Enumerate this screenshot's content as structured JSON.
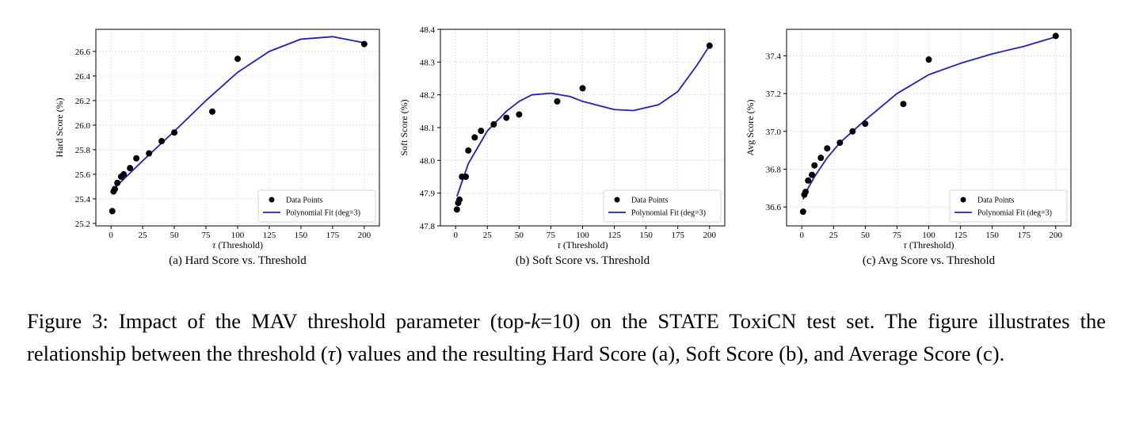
{
  "figure": {
    "caption": {
      "parts": [
        {
          "text": "Figure 3: Impact of the MAV threshold parameter (top-",
          "italic": false
        },
        {
          "text": "k",
          "italic": true
        },
        {
          "text": "=10) on the STATE ToxiCN test set. The figure illustrates the relationship between the threshold (",
          "italic": false
        },
        {
          "text": "τ",
          "italic": true
        },
        {
          "text": ") values and the resulting Hard Score (a), Soft Score (b), and Average Score (c).",
          "italic": false
        }
      ]
    }
  },
  "chart_data": [
    {
      "type": "scatter",
      "subcaption": "(a) Hard Score vs. Threshold",
      "xlabel_symbol": "τ",
      "xlabel_text": " (Threshold)",
      "ylabel": "Hard Score (%)",
      "xlim": [
        -12,
        212
      ],
      "ylim": [
        25.18,
        26.78
      ],
      "xticks": [
        0,
        25,
        50,
        75,
        100,
        125,
        150,
        175,
        200
      ],
      "yticks": [
        25.2,
        25.4,
        25.6,
        25.8,
        26.0,
        26.2,
        26.4,
        26.6
      ],
      "ytick_labels": [
        "25.2",
        "25.4",
        "25.6",
        "25.8",
        "26.0",
        "26.2",
        "26.4",
        "26.6"
      ],
      "grid": true,
      "legend_position": "lower-right",
      "series": [
        {
          "name": "Data Points",
          "kind": "scatter",
          "x": [
            1,
            2,
            3,
            5,
            8,
            10,
            15,
            20,
            30,
            40,
            50,
            80,
            100,
            200
          ],
          "y": [
            25.3,
            25.46,
            25.48,
            25.53,
            25.58,
            25.6,
            25.65,
            25.73,
            25.77,
            25.87,
            25.94,
            26.11,
            26.54,
            26.66
          ]
        },
        {
          "name": "Polynomial Fit (deg=3)",
          "kind": "line",
          "x": [
            1,
            10,
            25,
            50,
            75,
            100,
            125,
            150,
            175,
            200
          ],
          "y": [
            25.47,
            25.56,
            25.71,
            25.95,
            26.2,
            26.43,
            26.6,
            26.7,
            26.72,
            26.67
          ]
        }
      ]
    },
    {
      "type": "scatter",
      "subcaption": "(b) Soft Score vs. Threshold",
      "xlabel_symbol": "τ",
      "xlabel_text": " (Threshold)",
      "ylabel": "Soft Score (%)",
      "xlim": [
        -12,
        212
      ],
      "ylim": [
        47.8,
        48.4
      ],
      "xticks": [
        0,
        25,
        50,
        75,
        100,
        125,
        150,
        175,
        200
      ],
      "yticks": [
        47.8,
        47.9,
        48.0,
        48.1,
        48.2,
        48.3,
        48.4
      ],
      "ytick_labels": [
        "47.8",
        "47.9",
        "48.0",
        "48.1",
        "48.2",
        "48.3",
        "48.4"
      ],
      "grid": true,
      "legend_position": "lower-right",
      "series": [
        {
          "name": "Data Points",
          "kind": "scatter",
          "x": [
            1,
            2,
            3,
            5,
            8,
            10,
            15,
            20,
            30,
            40,
            50,
            80,
            100,
            200
          ],
          "y": [
            47.85,
            47.87,
            47.88,
            47.95,
            47.95,
            48.03,
            48.07,
            48.09,
            48.11,
            48.13,
            48.14,
            48.18,
            48.22,
            48.35
          ]
        },
        {
          "name": "Polynomial Fit (deg=3)",
          "kind": "line",
          "x": [
            1,
            10,
            25,
            40,
            50,
            60,
            75,
            90,
            100,
            125,
            140,
            160,
            175,
            190,
            200
          ],
          "y": [
            47.89,
            47.99,
            48.09,
            48.15,
            48.18,
            48.2,
            48.205,
            48.195,
            48.18,
            48.155,
            48.152,
            48.17,
            48.21,
            48.29,
            48.35
          ]
        }
      ]
    },
    {
      "type": "scatter",
      "subcaption": "(c) Avg Score vs. Threshold",
      "xlabel_symbol": "τ",
      "xlabel_text": " (Threshold)",
      "ylabel": "Avg Score (%)",
      "xlim": [
        -12,
        212
      ],
      "ylim": [
        36.5,
        37.54
      ],
      "xticks": [
        0,
        25,
        50,
        75,
        100,
        125,
        150,
        175,
        200
      ],
      "yticks": [
        36.6,
        36.8,
        37.0,
        37.2,
        37.4
      ],
      "ytick_labels": [
        "36.6",
        "36.8",
        "37.0",
        "37.2",
        "37.4"
      ],
      "grid": true,
      "legend_position": "lower-right",
      "series": [
        {
          "name": "Data Points",
          "kind": "scatter",
          "x": [
            1,
            2,
            3,
            5,
            8,
            10,
            15,
            20,
            30,
            40,
            50,
            80,
            100,
            200
          ],
          "y": [
            36.575,
            36.665,
            36.68,
            36.74,
            36.77,
            36.82,
            36.86,
            36.91,
            36.94,
            37.0,
            37.04,
            37.145,
            37.38,
            37.505
          ]
        },
        {
          "name": "Polynomial Fit (deg=3)",
          "kind": "line",
          "x": [
            1,
            5,
            10,
            20,
            30,
            50,
            75,
            100,
            125,
            150,
            175,
            200
          ],
          "y": [
            36.64,
            36.7,
            36.76,
            36.86,
            36.94,
            37.06,
            37.2,
            37.3,
            37.36,
            37.41,
            37.45,
            37.5
          ]
        }
      ]
    }
  ]
}
